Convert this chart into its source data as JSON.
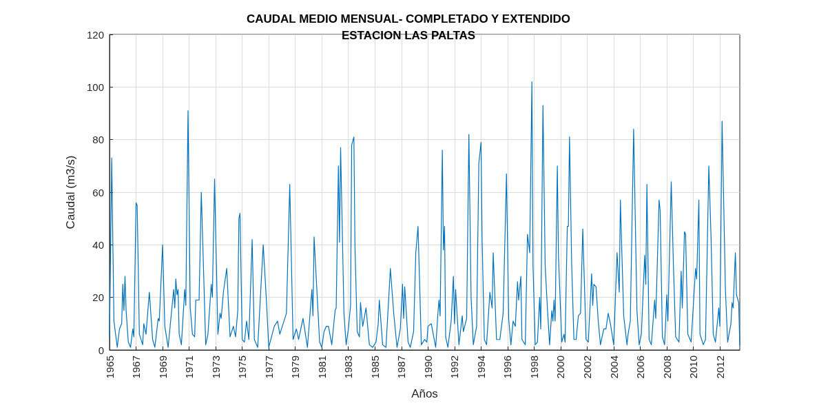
{
  "chart_data": {
    "type": "line",
    "title": "CAUDAL MEDIO MENSUAL- COMPLETADO Y EXTENDIDO\nESTACION LAS PALTAS",
    "xlabel": "Años",
    "ylabel": "Caudal (m3/s)",
    "categories": [
      "1965",
      null,
      null,
      null,
      null,
      null,
      null,
      null,
      null,
      null,
      null,
      null,
      null,
      null,
      null,
      null,
      null,
      null,
      null,
      null,
      null,
      null,
      null,
      null,
      "1967",
      null,
      null,
      null,
      null,
      null,
      null,
      null,
      null,
      null,
      null,
      null,
      null,
      null,
      null,
      null,
      null,
      null,
      null,
      null,
      null,
      null,
      null,
      null,
      "1969",
      null,
      null,
      null,
      null,
      null,
      null,
      null,
      null,
      null,
      null,
      null,
      null,
      null,
      null,
      null,
      null,
      null,
      null,
      null,
      null,
      null,
      null,
      null,
      "1971",
      null,
      null,
      null,
      null,
      null,
      null,
      null,
      null,
      null,
      null,
      null,
      null,
      null,
      null,
      null,
      null,
      null,
      null,
      null,
      null,
      null,
      null,
      null,
      "1973",
      null,
      null,
      null,
      null,
      null,
      null,
      null,
      null,
      null,
      null,
      null,
      null,
      null,
      null,
      null,
      null,
      null,
      null,
      null,
      null,
      null,
      null,
      null,
      "1975",
      null,
      null,
      null,
      null,
      null,
      null,
      null,
      null,
      null,
      null,
      null,
      null,
      null,
      null,
      null,
      null,
      null,
      null,
      null,
      null,
      null,
      null,
      null,
      "1977",
      null,
      null,
      null,
      null,
      null,
      null,
      null,
      null,
      null,
      null,
      null,
      null,
      null,
      null,
      null,
      null,
      null,
      null,
      null,
      null,
      null,
      null,
      null,
      "1979",
      null,
      null,
      null,
      null,
      null,
      null,
      null,
      null,
      null,
      null,
      null,
      null,
      null,
      null,
      null,
      null,
      null,
      null,
      null,
      null,
      null,
      null,
      null,
      "1981",
      null,
      null,
      null,
      null,
      null,
      null,
      null,
      null,
      null,
      null,
      null,
      null,
      null,
      null,
      null,
      null,
      null,
      null,
      null,
      null,
      null,
      null,
      null,
      "1983",
      null,
      null,
      null,
      null,
      null,
      null,
      null,
      null,
      null,
      null,
      null,
      null,
      null,
      null,
      null,
      null,
      null,
      null,
      null,
      null,
      null,
      null,
      null,
      "1985",
      null,
      null,
      null,
      null,
      null,
      null,
      null,
      null,
      null,
      null,
      null,
      null,
      null,
      null,
      null,
      null,
      null,
      null,
      null,
      null,
      null,
      null,
      null,
      "1987",
      null,
      null,
      null,
      null,
      null,
      null,
      null,
      null,
      null,
      null,
      null,
      null,
      null,
      null,
      null,
      null,
      null,
      null,
      null,
      null,
      null,
      null,
      null,
      "1990",
      null,
      null,
      null,
      null,
      null,
      null,
      null,
      null,
      null,
      null,
      null,
      null,
      null,
      null,
      null,
      null,
      null,
      null,
      null,
      null,
      null,
      null,
      null,
      "1992",
      null,
      null,
      null,
      null,
      null,
      null,
      null,
      null,
      null,
      null,
      null,
      null,
      null,
      null,
      null,
      null,
      null,
      null,
      null,
      null,
      null,
      null,
      null,
      "1994",
      null,
      null,
      null,
      null,
      null,
      null,
      null,
      null,
      null,
      null,
      null,
      null,
      null,
      null,
      null,
      null,
      null,
      null,
      null,
      null,
      null,
      null,
      null,
      "1996",
      null,
      null,
      null,
      null,
      null,
      null,
      null,
      null,
      null,
      null,
      null,
      null,
      null,
      null,
      null,
      null,
      null,
      null,
      null,
      null,
      null,
      null,
      null,
      "1998",
      null,
      null,
      null,
      null,
      null,
      null,
      null,
      null,
      null,
      null,
      null,
      null,
      null,
      null,
      null,
      null,
      null,
      null,
      null,
      null,
      null,
      null,
      null,
      "2000",
      null,
      null,
      null,
      null,
      null,
      null,
      null,
      null,
      null,
      null,
      null,
      null,
      null,
      null,
      null,
      null,
      null,
      null,
      null,
      null,
      null,
      null,
      null,
      "2002",
      null,
      null,
      null,
      null,
      null,
      null,
      null,
      null,
      null,
      null,
      null,
      null,
      null,
      null,
      null,
      null,
      null,
      null,
      null,
      null,
      null,
      null,
      null,
      "2004",
      null,
      null,
      null,
      null,
      null,
      null,
      null,
      null,
      null,
      null,
      null,
      null,
      null,
      null,
      null,
      null,
      null,
      null,
      null,
      null,
      null,
      null,
      null,
      "2006",
      null,
      null,
      null,
      null,
      null,
      null,
      null,
      null,
      null,
      null,
      null,
      null,
      null,
      null,
      null,
      null,
      null,
      null,
      null,
      null,
      null,
      null,
      null,
      "2008",
      null,
      null,
      null,
      null,
      null,
      null,
      null,
      null,
      null,
      null,
      null,
      null,
      null,
      null,
      null,
      null,
      null,
      null,
      null,
      null,
      null,
      null,
      null,
      "2010",
      null,
      null,
      null,
      null,
      null,
      null,
      null,
      null,
      null,
      null,
      null,
      null,
      null,
      null,
      null,
      null,
      null,
      null,
      null,
      null,
      null,
      null,
      null,
      "2012",
      null,
      null,
      null,
      null,
      null,
      null,
      null,
      null,
      null,
      null,
      null,
      null,
      null,
      null,
      null,
      null,
      null,
      null
    ],
    "ylim": [
      0,
      120
    ],
    "yticks": [
      0,
      20,
      40,
      60,
      80,
      100,
      120
    ],
    "grid": true,
    "marker": "none",
    "line_style": "solid",
    "series": [
      {
        "color": "#0072bd",
        "values": [
          5,
          null,
          73,
          41,
          11,
          null,
          null,
          1,
          null,
          8,
          null,
          10,
          25,
          15,
          28,
          15,
          null,
          3,
          null,
          1,
          null,
          8,
          5,
          null,
          56,
          55,
          null,
          6,
          null,
          null,
          2,
          10,
          null,
          6,
          null,
          null,
          22,
          null,
          null,
          4,
          null,
          1,
          null,
          null,
          12,
          11,
          null,
          null,
          40,
          null,
          9,
          null,
          null,
          1,
          null,
          null,
          null,
          null,
          23,
          16,
          27,
          21,
          23,
          6,
          null,
          2,
          null,
          null,
          23,
          17,
          null,
          91,
          null,
          16,
          null,
          6,
          null,
          5,
          19,
          null,
          19,
          19,
          null,
          60,
          null,
          null,
          null,
          2,
          null,
          6,
          null,
          null,
          25,
          20,
          null,
          65,
          null,
          null,
          6,
          null,
          14,
          12,
          null,
          22,
          null,
          null,
          31,
          null,
          null,
          5,
          null,
          null,
          9,
          null,
          5,
          null,
          15,
          50,
          52,
          null,
          4,
          null,
          3,
          null,
          11,
          null,
          4,
          null,
          null,
          42,
          null,
          4,
          null,
          null,
          1,
          null,
          null,
          null,
          null,
          40,
          null,
          null,
          18,
          null,
          1,
          null,
          null,
          null,
          null,
          9,
          null,
          null,
          11,
          null,
          6,
          null,
          null,
          null,
          null,
          null,
          14,
          null,
          null,
          63,
          null,
          null,
          4,
          null,
          null,
          8,
          null,
          4,
          null,
          null,
          null,
          12,
          null,
          null,
          null,
          1,
          null,
          null,
          null,
          23,
          13,
          43,
          null,
          null,
          null,
          null,
          3,
          null,
          1,
          null,
          7,
          null,
          9,
          null,
          9,
          null,
          null,
          2,
          null,
          null,
          15,
          16,
          null,
          70,
          41,
          77,
          null,
          null,
          14,
          null,
          2,
          null,
          8,
          null,
          17,
          78,
          null,
          81,
          39,
          null,
          7,
          null,
          5,
          18,
          null,
          9,
          null,
          null,
          16,
          null,
          null,
          2,
          null,
          null,
          1,
          null,
          null,
          3,
          null,
          10,
          19,
          null,
          null,
          2,
          null,
          null,
          1,
          null,
          null,
          null,
          31,
          null,
          null,
          14,
          null,
          null,
          1,
          null,
          null,
          8,
          null,
          25,
          12,
          24,
          null,
          null,
          3,
          null,
          1,
          null,
          null,
          7,
          null,
          37,
          null,
          47,
          null,
          null,
          2,
          null,
          null,
          4,
          null,
          3,
          9,
          null,
          null,
          10,
          null,
          null,
          null,
          1,
          null,
          14,
          19,
          13,
          null,
          76,
          38,
          47,
          5,
          null,
          1,
          null,
          null,
          11,
          null,
          28,
          10,
          23,
          null,
          null,
          2,
          null,
          null,
          13,
          7,
          null,
          null,
          12,
          null,
          82,
          null,
          20,
          null,
          2,
          null,
          null,
          9,
          null,
          71,
          null,
          79,
          41,
          null,
          4,
          null,
          2,
          null,
          null,
          22,
          null,
          16,
          37,
          null,
          null,
          4,
          null,
          null,
          4,
          null,
          null,
          14,
          null,
          null,
          67,
          null,
          12,
          null,
          2,
          null,
          11,
          null,
          9,
          null,
          26,
          19,
          null,
          28,
          4,
          null,
          null,
          2,
          null,
          44,
          null,
          37,
          null,
          102,
          32,
          null,
          2,
          null,
          3,
          null,
          20,
          8,
          null,
          93,
          null,
          32,
          null,
          16,
          null,
          2,
          null,
          15,
          11,
          19,
          11,
          null,
          70,
          36,
          null,
          null,
          3,
          null,
          6,
          3,
          null,
          47,
          47,
          81,
          null,
          32,
          null,
          4,
          null,
          4,
          null,
          13,
          null,
          14,
          null,
          46,
          32,
          null,
          4,
          null,
          3,
          null,
          null,
          29,
          17,
          25,
          null,
          24,
          null,
          11,
          null,
          2,
          null,
          null,
          8,
          null,
          8,
          null,
          14,
          null,
          10,
          null,
          null,
          2,
          null,
          null,
          37,
          null,
          22,
          57,
          null,
          null,
          13,
          null,
          null,
          2,
          6,
          null,
          11,
          null,
          null,
          84,
          null,
          null,
          15,
          null,
          2,
          null,
          6,
          null,
          null,
          36,
          25,
          63,
          null,
          4,
          null,
          2,
          null,
          null,
          19,
          12,
          null,
          null,
          57,
          53,
          null,
          5,
          null,
          2,
          null,
          21,
          11,
          null,
          null,
          64,
          null,
          32,
          null,
          5,
          null,
          null,
          3,
          null,
          30,
          16,
          null,
          45,
          44,
          null,
          6,
          null,
          null,
          3,
          null,
          null,
          null,
          31,
          27,
          null,
          57,
          6,
          null,
          null,
          2,
          null,
          4,
          null,
          null,
          70,
          null,
          43,
          null,
          6,
          null,
          3,
          null,
          null,
          16,
          9,
          null,
          87,
          null,
          null,
          23,
          null,
          3,
          null,
          null,
          10,
          18,
          16,
          null,
          37,
          21,
          null,
          18,
          2
        ]
      }
    ]
  }
}
